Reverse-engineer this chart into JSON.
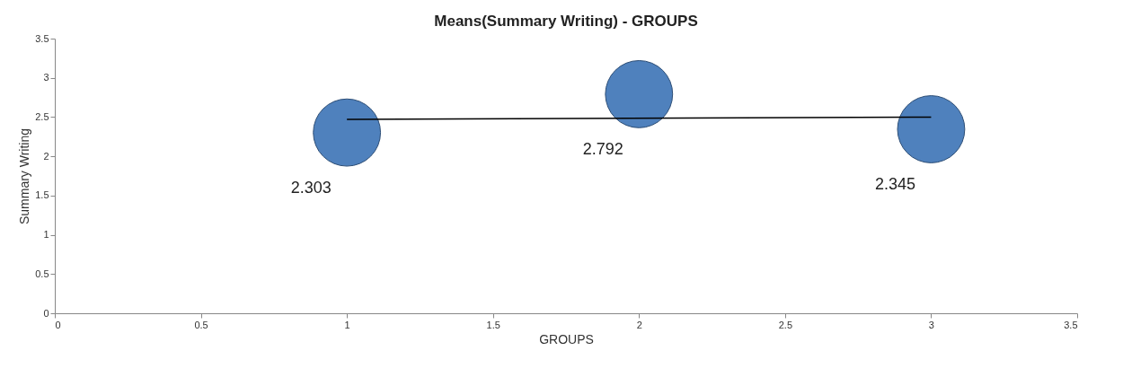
{
  "chart_data": {
    "type": "bubble",
    "title": "Means(Summary Writing) - GROUPS",
    "xlabel": "GROUPS",
    "ylabel": "Summary Writing",
    "series": [
      {
        "color": "#4f81bd",
        "x": [
          1,
          2,
          3
        ],
        "values": [
          2.303,
          2.792,
          2.345
        ],
        "sizes": [
          1,
          1,
          1
        ],
        "data_labels": true
      },
      {
        "type": "line",
        "color": "#000000",
        "x": [
          1,
          3
        ],
        "values": [
          2.47,
          2.5
        ]
      }
    ],
    "xlim": [
      0,
      3.5
    ],
    "xticks": [
      0,
      0.5,
      1,
      1.5,
      2,
      2.5,
      3,
      3.5
    ],
    "ylim": [
      0,
      3.5
    ],
    "yticks": [
      0,
      0.5,
      1,
      1.5,
      2,
      2.5,
      3,
      3.5
    ],
    "grid": false
  }
}
